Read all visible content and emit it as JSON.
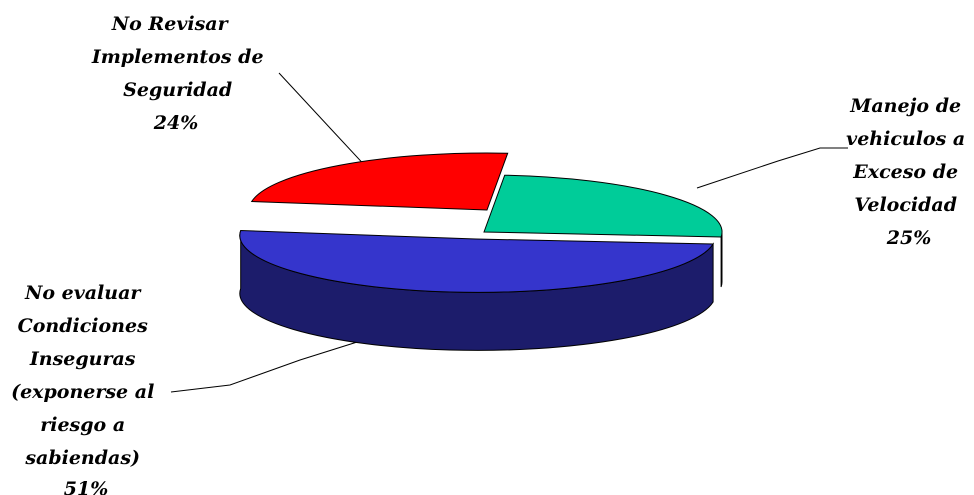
{
  "chart_data": {
    "type": "pie",
    "style": "3d-exploded",
    "title": "",
    "legend": "none",
    "slices": [
      {
        "label_lines": [
          "No evaluar",
          "Condiciones",
          "Inseguras",
          "(exponerse al",
          "riesgo a",
          "sabiendas)"
        ],
        "label": "No evaluar Condiciones Inseguras (exponerse al riesgo a sabiendas)",
        "value": 51,
        "percent_label": "51%",
        "color": "#3535CC",
        "side_color": "#1C1C6B"
      },
      {
        "label_lines": [
          "No Revisar",
          "Implementos de",
          "Seguridad"
        ],
        "label": "No Revisar Implementos de Seguridad",
        "value": 24,
        "percent_label": "24%",
        "color": "#FF0000",
        "side_color": "#8B0000"
      },
      {
        "label_lines": [
          "Manejo de",
          "vehiculos a",
          "Exceso de",
          "Velocidad"
        ],
        "label": "Manejo de vehiculos a Exceso de Velocidad",
        "value": 25,
        "percent_label": "25%",
        "color": "#00CC99",
        "side_color": "#0A6B50"
      }
    ]
  }
}
